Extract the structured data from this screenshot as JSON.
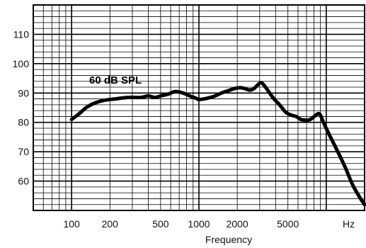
{
  "chart_data": {
    "type": "line",
    "title": "",
    "xlabel": "Frequency",
    "ylabel": "",
    "x_scale": "log",
    "xlim": [
      50,
      20000
    ],
    "ylim": [
      50,
      120
    ],
    "grid": true,
    "annotation": "60 dB SPL",
    "x_tick_labels": [
      "100",
      "200",
      "500",
      "1000",
      "2000",
      "5000",
      "Hz"
    ],
    "x_tick_values": [
      100,
      200,
      500,
      1000,
      2000,
      5000,
      15000
    ],
    "y_tick_labels": [
      "60",
      "70",
      "80",
      "90",
      "100",
      "110"
    ],
    "y_tick_values": [
      60,
      70,
      80,
      90,
      100,
      110
    ],
    "series": [
      {
        "name": "",
        "x": [
          100,
          115,
          130,
          150,
          180,
          220,
          280,
          350,
          400,
          450,
          500,
          580,
          650,
          750,
          850,
          950,
          1000,
          1100,
          1300,
          1500,
          1700,
          1900,
          2100,
          2300,
          2500,
          2700,
          2900,
          3100,
          3400,
          3800,
          4300,
          4800,
          5300,
          5800,
          6300,
          6800,
          7300,
          7800,
          8300,
          8700,
          9000,
          9500,
          10500,
          12000,
          14000,
          16000,
          18000,
          20000
        ],
        "y": [
          81,
          83,
          85,
          86.5,
          87.5,
          88,
          88.5,
          88.5,
          89,
          88.5,
          89,
          89.7,
          90.5,
          90,
          89,
          88.2,
          87.8,
          88,
          88.8,
          90,
          90.8,
          91.5,
          91.8,
          91.5,
          91,
          91.5,
          92.8,
          93.5,
          91.5,
          88.5,
          86,
          83.5,
          82.5,
          82,
          81,
          80.8,
          80.8,
          81.5,
          82.5,
          83,
          82.5,
          80,
          76,
          71,
          65,
          59,
          55,
          52
        ]
      }
    ],
    "line_color": "#000000"
  }
}
